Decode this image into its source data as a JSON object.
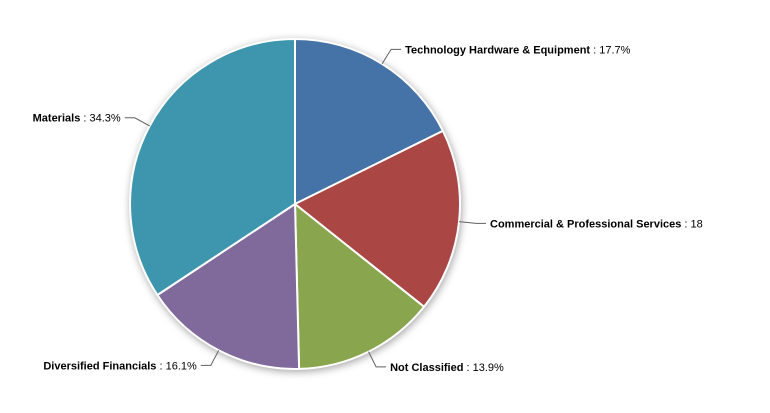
{
  "chart_data": {
    "type": "pie",
    "title": "",
    "legend_position": "none",
    "start_angle_deg": 0,
    "direction": "clockwise",
    "label_separator": " : ",
    "slice_border_color": "#FFFFFF",
    "connector_color": "#606060",
    "background_color": "#FFFFFF",
    "slices": [
      {
        "label": "Technology Hardware & Equipment",
        "value": 17.7,
        "display_value": "17.7%",
        "color": "#4572A7"
      },
      {
        "label": "Commercial & Professional Services",
        "value": 18.0,
        "display_value": "18",
        "color": "#AA4643"
      },
      {
        "label": "Not Classified",
        "value": 13.9,
        "display_value": "13.9%",
        "color": "#89A54E"
      },
      {
        "label": "Diversified Financials",
        "value": 16.1,
        "display_value": "16.1%",
        "color": "#80699B"
      },
      {
        "label": "Materials",
        "value": 34.3,
        "display_value": "34.3%",
        "color": "#3D96AE"
      }
    ]
  }
}
